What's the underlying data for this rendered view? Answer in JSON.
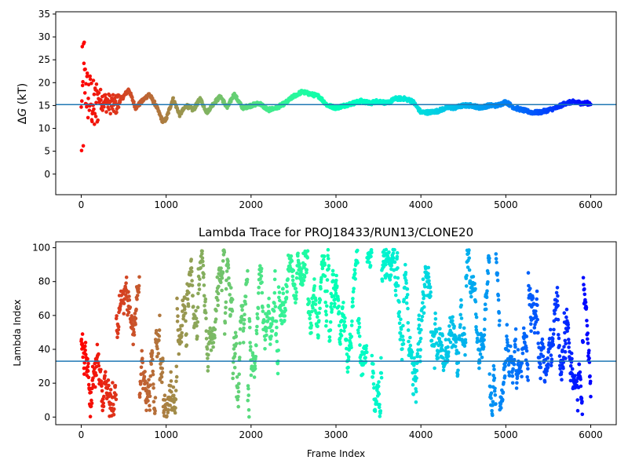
{
  "chart_data": [
    {
      "type": "scatter",
      "title": "",
      "xlabel": "",
      "ylabel": "ΔG (kT)",
      "ylabel_parts": {
        "delta": "Δ",
        "var": "G",
        "unit": " (kT)"
      },
      "xlim": [
        -300,
        6300
      ],
      "ylim": [
        -4.5,
        35.5
      ],
      "x_ticks": [
        0,
        1000,
        2000,
        3000,
        4000,
        5000,
        6000
      ],
      "y_ticks": [
        0,
        5,
        10,
        15,
        20,
        25,
        30,
        35
      ],
      "hline": 15.2,
      "hline_color": "#1f77b4",
      "colormap": "rainbow",
      "grid": false,
      "series": [
        {
          "description": "free energy estimate per frame, colored by frame index",
          "x_range": [
            0,
            6000
          ],
          "trace_x": [
            0,
            40,
            80,
            120,
            160,
            200,
            260,
            320,
            400,
            500,
            560,
            640,
            720,
            800,
            880,
            960,
            1000,
            1080,
            1160,
            1240,
            1320,
            1400,
            1480,
            1560,
            1640,
            1720,
            1800,
            1900,
            2000,
            2100,
            2200,
            2300,
            2400,
            2500,
            2600,
            2700,
            2800,
            2900,
            3000,
            3100,
            3200,
            3300,
            3400,
            3500,
            3600,
            3700,
            3800,
            3900,
            4000,
            4100,
            4200,
            4300,
            4400,
            4500,
            4600,
            4700,
            4800,
            4900,
            5000,
            5100,
            5200,
            5300,
            5400,
            5500,
            5600,
            5700,
            5800,
            5900,
            6000
          ],
          "trace_y": [
            10,
            20,
            17,
            16,
            14,
            17,
            16,
            15.5,
            15,
            17,
            18.5,
            14.5,
            16,
            17.5,
            15,
            11.5,
            12,
            16.5,
            13,
            15,
            14,
            16.5,
            13.5,
            15.5,
            17,
            14.5,
            17.5,
            14.5,
            15,
            15.5,
            14,
            14.5,
            15.5,
            17,
            18,
            17.5,
            17,
            15,
            14.5,
            15,
            15.5,
            16,
            15.5,
            16,
            15.5,
            16.5,
            16.5,
            16,
            13.5,
            13.5,
            13.8,
            14.5,
            14.5,
            15,
            15,
            14.5,
            15,
            15,
            15.8,
            14.5,
            14,
            13.5,
            13.5,
            14,
            14.5,
            15.5,
            15.8,
            15.5,
            15.5
          ]
        }
      ]
    },
    {
      "type": "scatter",
      "title": "Lambda Trace for PROJ18433/RUN13/CLONE20",
      "xlabel": "Frame Index",
      "ylabel": "Lambda Index",
      "xlim": [
        -300,
        6300
      ],
      "ylim": [
        -4.5,
        103.5
      ],
      "x_ticks": [
        0,
        1000,
        2000,
        3000,
        4000,
        5000,
        6000
      ],
      "y_ticks": [
        0,
        20,
        40,
        60,
        80,
        100
      ],
      "hline": 33,
      "hline_color": "#1f77b4",
      "colormap": "rainbow",
      "grid": false,
      "series": [
        {
          "description": "lambda index (0-99) per frame, colored by frame index",
          "x_range": [
            0,
            6000
          ],
          "y_range": [
            0,
            99
          ]
        }
      ]
    }
  ]
}
